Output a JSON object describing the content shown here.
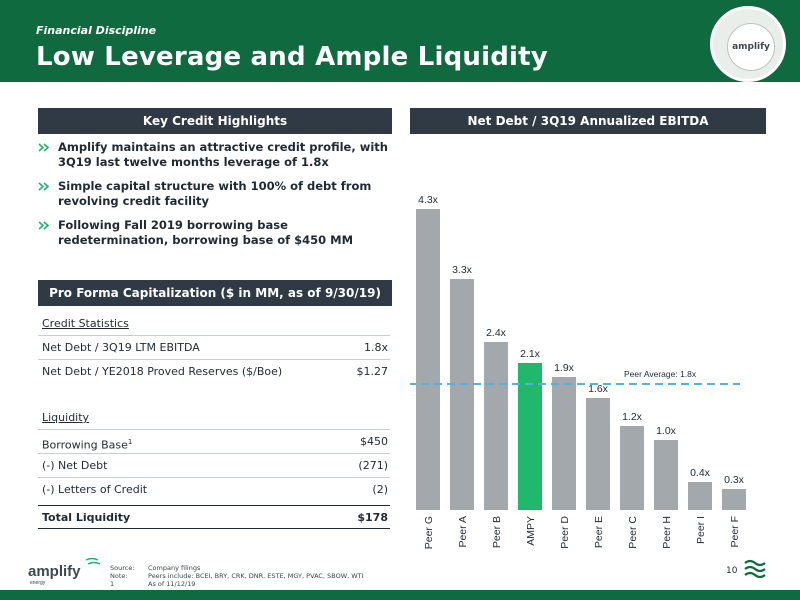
{
  "header": {
    "subtitle": "Financial Discipline",
    "title": "Low Leverage and Ample Liquidity",
    "logo_text": "amplify",
    "logo_accent": "energy"
  },
  "key_credit": {
    "title": "Key Credit Highlights",
    "bullets": [
      "Amplify maintains an attractive credit profile, with 3Q19 last twelve months leverage of 1.8x",
      "Simple capital structure with 100% of debt from revolving credit facility",
      "Following Fall 2019 borrowing base redetermination, borrowing base of $450 MM"
    ]
  },
  "capitalization": {
    "title": "Pro Forma Capitalization ($ in MM, as of 9/30/19)",
    "credit_heading": "Credit Statistics",
    "net_debt_ebitda_label": "Net Debt / 3Q19 LTM EBITDA",
    "net_debt_ebitda_value": "1.8x",
    "net_debt_reserves_label": "Net Debt / YE2018 Proved Reserves ($/Boe)",
    "net_debt_reserves_value": "$1.27",
    "liquidity_heading": "Liquidity",
    "borrowing_base_label": "Borrowing Base",
    "borrowing_base_sup": "1",
    "borrowing_base_value": "$450",
    "net_debt_label": "(-) Net Debt",
    "net_debt_value": "(271)",
    "letters_label": "(-) Letters of Credit",
    "letters_value": "(2)",
    "total_label": "Total Liquidity",
    "total_value": "$178"
  },
  "chart_panel": {
    "title": "Net Debt / 3Q19 Annualized EBITDA"
  },
  "chart_data": {
    "type": "bar",
    "title": "Net Debt / 3Q19 Annualized EBITDA",
    "categories": [
      "Peer G",
      "Peer A",
      "Peer B",
      "AMPY",
      "Peer D",
      "Peer E",
      "Peer C",
      "Peer H",
      "Peer I",
      "Peer F"
    ],
    "values": [
      4.3,
      3.3,
      2.4,
      2.1,
      1.9,
      1.6,
      1.2,
      1.0,
      0.4,
      0.3
    ],
    "data_labels": [
      "4.3x",
      "3.3x",
      "2.4x",
      "2.1x",
      "1.9x",
      "1.6x",
      "1.2x",
      "1.0x",
      "0.4x",
      "0.3x"
    ],
    "highlight_category": "AMPY",
    "reference_line": {
      "value": 1.8,
      "label": "Peer Average: 1.8x"
    },
    "ylim": [
      0,
      4.3
    ],
    "grid": false,
    "colors": {
      "bar": "#a2a8ab",
      "highlight": "#1fb86c",
      "reference": "#5aaee0"
    }
  },
  "footer": {
    "source_key": "Source:",
    "source_val": "Company filings",
    "note_key": "Note:",
    "note_val": "Peers include: BCEI, BRY, CRK, DNR, ESTE, MGY, PVAC, SBOW, WTI",
    "fn_key": "1",
    "fn_val": "As of 11/12/19",
    "page_number": "10",
    "logo_text": "amplify",
    "logo_sub": "energy"
  },
  "colors": {
    "brand_green": "#0f6a3f",
    "section_bar": "#2f3a44",
    "accent_green": "#23b26b"
  }
}
